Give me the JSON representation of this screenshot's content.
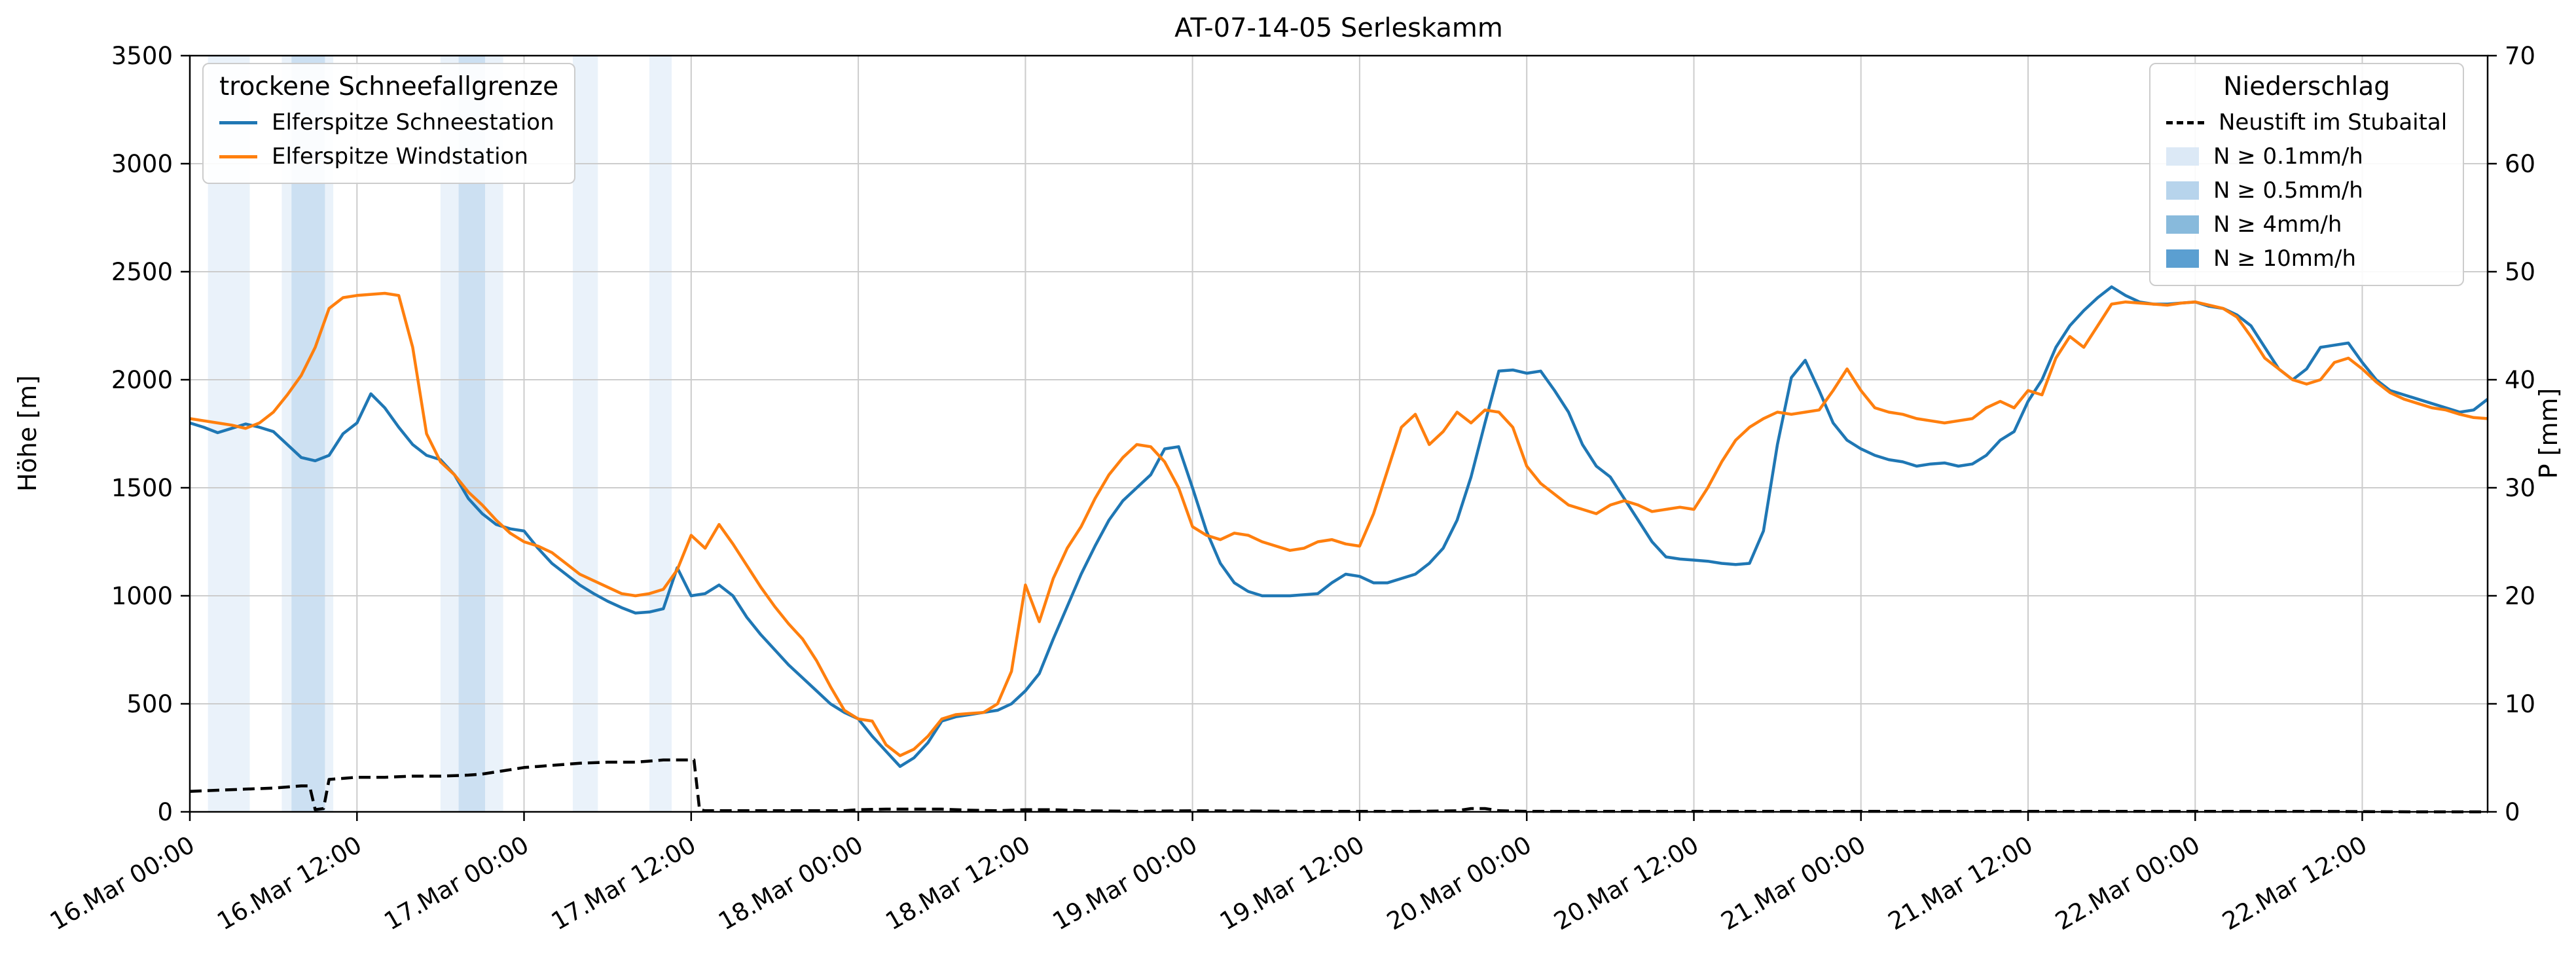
{
  "chart_data": {
    "type": "line",
    "title": "AT-07-14-05 Serleskamm",
    "ylabel_left": "Höhe [m]",
    "ylabel_right": "P [mm]",
    "ylim_left": [
      0,
      3500
    ],
    "ylim_right": [
      0,
      70
    ],
    "xlim": [
      0,
      165
    ],
    "x_unit": "hours since 16.Mar 00:00",
    "grid": true,
    "yticks_left": [
      0,
      500,
      1000,
      1500,
      2000,
      2500,
      3000,
      3500
    ],
    "yticks_right": [
      0,
      10,
      20,
      30,
      40,
      50,
      60,
      70
    ],
    "xticks": [
      {
        "h": 0,
        "label": "16.Mar 00:00"
      },
      {
        "h": 12,
        "label": "16.Mar 12:00"
      },
      {
        "h": 24,
        "label": "17.Mar 00:00"
      },
      {
        "h": 36,
        "label": "17.Mar 12:00"
      },
      {
        "h": 48,
        "label": "18.Mar 00:00"
      },
      {
        "h": 60,
        "label": "18.Mar 12:00"
      },
      {
        "h": 72,
        "label": "19.Mar 00:00"
      },
      {
        "h": 84,
        "label": "19.Mar 12:00"
      },
      {
        "h": 96,
        "label": "20.Mar 00:00"
      },
      {
        "h": 108,
        "label": "20.Mar 12:00"
      },
      {
        "h": 120,
        "label": "21.Mar 00:00"
      },
      {
        "h": 132,
        "label": "21.Mar 12:00"
      },
      {
        "h": 144,
        "label": "22.Mar 00:00"
      },
      {
        "h": 156,
        "label": "22.Mar 12:00"
      }
    ],
    "legend_left": {
      "title": "trockene Schneefallgrenze",
      "items": [
        {
          "label": "Elferspitze Schneestation",
          "color": "#1f77b4"
        },
        {
          "label": "Elferspitze Windstation",
          "color": "#ff7f0e"
        }
      ]
    },
    "legend_right": {
      "title": "Niederschlag",
      "items": [
        {
          "label": "Neustift im Stubaital",
          "type": "dashed-line",
          "color": "#000000"
        },
        {
          "label": "N ≥ 0.1mm/h",
          "type": "patch",
          "color": "#dce9f6"
        },
        {
          "label": "N ≥ 0.5mm/h",
          "type": "patch",
          "color": "#b7d4ec"
        },
        {
          "label": "N ≥ 4mm/h",
          "type": "patch",
          "color": "#88badc"
        },
        {
          "label": "N ≥ 10mm/h",
          "type": "patch",
          "color": "#5b9fd1"
        }
      ]
    },
    "band_colors": {
      "0.1": "#dce9f6",
      "0.5": "#b7d4ec",
      "4": "#88badc",
      "10": "#5b9fd1"
    },
    "precip_bands": [
      {
        "start": 1.3,
        "end": 4.3,
        "level": "0.1"
      },
      {
        "start": 6.6,
        "end": 10.3,
        "level": "0.1"
      },
      {
        "start": 7.3,
        "end": 9.7,
        "level": "0.5"
      },
      {
        "start": 18.0,
        "end": 22.5,
        "level": "0.1"
      },
      {
        "start": 19.3,
        "end": 21.2,
        "level": "0.5"
      },
      {
        "start": 27.5,
        "end": 29.3,
        "level": "0.1"
      },
      {
        "start": 33.0,
        "end": 34.6,
        "level": "0.1"
      }
    ],
    "series": [
      {
        "id": "schneestation",
        "name": "Elferspitze Schneestation",
        "color": "#1f77b4",
        "axis": "left",
        "stroke_width": 4.5,
        "x0": 0,
        "dx": 1,
        "y": [
          1800,
          1780,
          1755,
          1775,
          1795,
          1780,
          1760,
          1700,
          1640,
          1625,
          1650,
          1750,
          1800,
          1935,
          1870,
          1780,
          1700,
          1650,
          1630,
          1560,
          1450,
          1380,
          1330,
          1310,
          1300,
          1220,
          1150,
          1100,
          1050,
          1010,
          975,
          945,
          920,
          925,
          940,
          1130,
          1000,
          1010,
          1050,
          1000,
          900,
          820,
          750,
          680,
          620,
          560,
          500,
          460,
          430,
          350,
          280,
          210,
          250,
          320,
          420,
          440,
          450,
          460,
          470,
          500,
          560,
          640,
          800,
          950,
          1100,
          1230,
          1350,
          1440,
          1500,
          1560,
          1680,
          1690,
          1500,
          1300,
          1150,
          1060,
          1020,
          1000,
          1000,
          1000,
          1005,
          1010,
          1060,
          1100,
          1090,
          1060,
          1060,
          1080,
          1100,
          1150,
          1220,
          1350,
          1550,
          1800,
          2040,
          2045,
          2030,
          2040,
          1950,
          1850,
          1700,
          1600,
          1550,
          1450,
          1350,
          1250,
          1180,
          1170,
          1165,
          1160,
          1150,
          1145,
          1150,
          1300,
          1700,
          2010,
          2090,
          1950,
          1800,
          1720,
          1680,
          1650,
          1630,
          1620,
          1600,
          1610,
          1615,
          1600,
          1610,
          1650,
          1720,
          1760,
          1900,
          2000,
          2150,
          2250,
          2320,
          2380,
          2430,
          2390,
          2360,
          2350,
          2350,
          2355,
          2360,
          2340,
          2330,
          2300,
          2250,
          2150,
          2050,
          2000,
          2050,
          2150,
          2160,
          2170,
          2080,
          2000,
          1950,
          1930,
          1910,
          1890,
          1870,
          1850,
          1860,
          1910
        ]
      },
      {
        "id": "windstation",
        "name": "Elferspitze Windstation",
        "color": "#ff7f0e",
        "axis": "left",
        "stroke_width": 4.5,
        "x0": 0,
        "dx": 1,
        "y": [
          1820,
          1810,
          1800,
          1790,
          1775,
          1800,
          1850,
          1930,
          2020,
          2150,
          2330,
          2380,
          2390,
          2395,
          2400,
          2390,
          2150,
          1750,
          1620,
          1560,
          1480,
          1420,
          1350,
          1290,
          1250,
          1230,
          1200,
          1150,
          1100,
          1070,
          1040,
          1010,
          1000,
          1010,
          1030,
          1120,
          1280,
          1220,
          1330,
          1240,
          1140,
          1040,
          950,
          870,
          800,
          700,
          580,
          470,
          430,
          420,
          310,
          260,
          290,
          350,
          430,
          450,
          455,
          460,
          500,
          650,
          1050,
          880,
          1080,
          1220,
          1320,
          1450,
          1560,
          1640,
          1700,
          1690,
          1620,
          1500,
          1320,
          1280,
          1260,
          1290,
          1280,
          1250,
          1230,
          1210,
          1220,
          1250,
          1260,
          1240,
          1230,
          1380,
          1580,
          1780,
          1840,
          1700,
          1760,
          1850,
          1800,
          1860,
          1850,
          1780,
          1600,
          1520,
          1470,
          1420,
          1400,
          1380,
          1420,
          1440,
          1420,
          1390,
          1400,
          1410,
          1400,
          1500,
          1620,
          1720,
          1780,
          1820,
          1850,
          1840,
          1850,
          1860,
          1950,
          2050,
          1950,
          1870,
          1850,
          1840,
          1820,
          1810,
          1800,
          1810,
          1820,
          1870,
          1900,
          1870,
          1950,
          1930,
          2100,
          2200,
          2150,
          2250,
          2350,
          2360,
          2355,
          2350,
          2345,
          2355,
          2360,
          2345,
          2330,
          2290,
          2200,
          2100,
          2050,
          2000,
          1980,
          2000,
          2080,
          2100,
          2050,
          1990,
          1940,
          1910,
          1890,
          1870,
          1860,
          1840,
          1825,
          1820
        ]
      },
      {
        "id": "neustift",
        "name": "Neustift im Stubaital",
        "color": "#000000",
        "axis": "right",
        "dashed": true,
        "stroke_width": 4.5,
        "x": [
          0,
          2,
          4,
          6,
          8,
          8.6,
          9,
          9.6,
          10,
          12,
          14,
          16,
          18,
          20,
          21,
          22,
          23,
          24,
          25,
          26,
          27,
          28,
          30,
          32,
          33,
          34,
          35,
          36.2,
          36.6,
          37,
          40,
          44,
          47,
          48,
          50,
          52,
          54,
          56,
          58,
          59,
          60,
          61,
          62,
          64,
          68,
          72,
          80,
          88,
          91,
          92,
          93,
          94,
          96,
          104,
          112,
          120,
          128,
          136,
          144,
          152,
          160,
          165
        ],
        "y": [
          1.9,
          2.0,
          2.1,
          2.2,
          2.4,
          2.4,
          0.2,
          0.3,
          3.0,
          3.2,
          3.2,
          3.3,
          3.3,
          3.4,
          3.5,
          3.7,
          3.9,
          4.1,
          4.2,
          4.3,
          4.4,
          4.5,
          4.6,
          4.6,
          4.7,
          4.8,
          4.8,
          4.8,
          0.2,
          0.1,
          0.1,
          0.1,
          0.1,
          0.2,
          0.25,
          0.25,
          0.25,
          0.15,
          0.1,
          0.15,
          0.2,
          0.2,
          0.2,
          0.1,
          0.05,
          0.1,
          0.05,
          0.05,
          0.1,
          0.3,
          0.3,
          0.1,
          0.05,
          0.05,
          0.05,
          0.05,
          0.05,
          0.05,
          0.05,
          0.05,
          0.0,
          0.0
        ]
      }
    ]
  }
}
